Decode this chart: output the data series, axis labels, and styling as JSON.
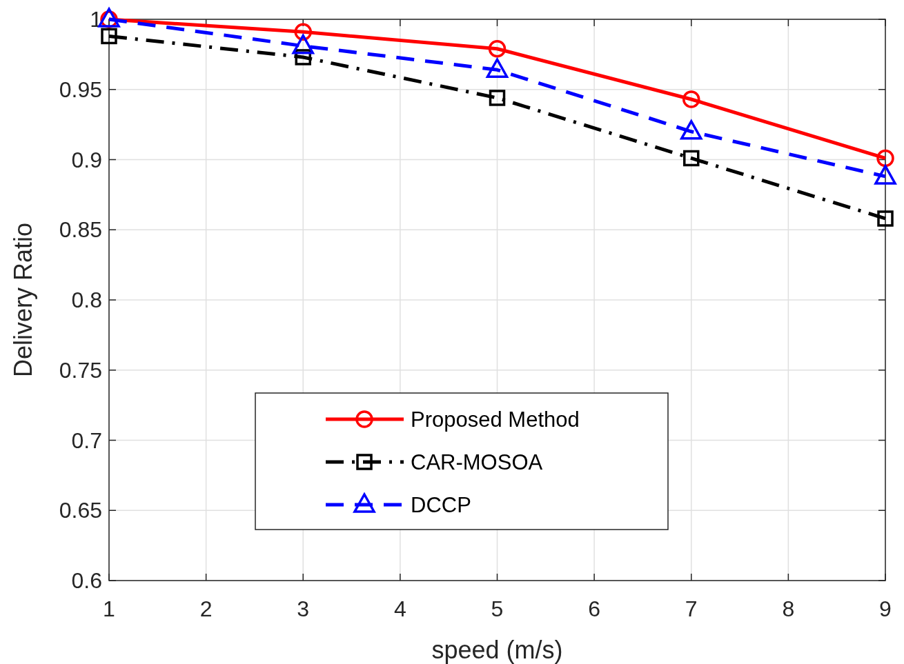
{
  "chart_data": {
    "type": "line",
    "xlabel": "speed (m/s)",
    "ylabel": "Delivery Ratio",
    "x": [
      1,
      3,
      5,
      7,
      9
    ],
    "xlim": [
      1,
      9
    ],
    "xticks": [
      1,
      2,
      3,
      4,
      5,
      6,
      7,
      8,
      9
    ],
    "ylim": [
      0.6,
      1
    ],
    "yticks": [
      0.6,
      0.65,
      0.7,
      0.75,
      0.8,
      0.85,
      0.9,
      0.95,
      1
    ],
    "grid": true,
    "legend": "bottom",
    "series": [
      {
        "name": "Proposed Method",
        "color": "#ff0000",
        "marker": "circle",
        "line_style": "solid",
        "values": [
          1.0,
          0.991,
          0.979,
          0.943,
          0.901
        ]
      },
      {
        "name": "CAR-MOSOA",
        "color": "#000000",
        "marker": "square",
        "line_style": "dashdot",
        "values": [
          0.988,
          0.973,
          0.944,
          0.901,
          0.858
        ]
      },
      {
        "name": "DCCP",
        "color": "#0000ff",
        "marker": "triangle",
        "line_style": "dashed",
        "values": [
          1.0,
          0.981,
          0.964,
          0.92,
          0.888
        ]
      }
    ]
  }
}
